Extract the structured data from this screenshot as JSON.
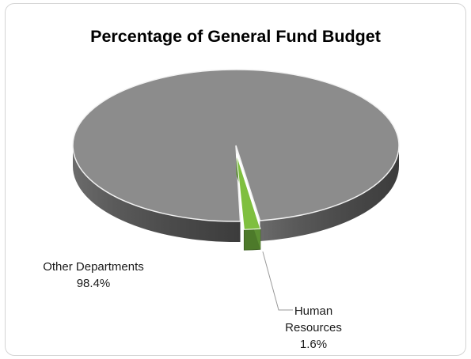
{
  "chart_data": {
    "type": "pie",
    "title": "Percentage of General Fund Budget",
    "categories": [
      "Other Departments",
      "Human Resources"
    ],
    "values": [
      98.4,
      1.6
    ],
    "value_labels": [
      "98.4%",
      "1.6%"
    ],
    "colors": {
      "Other Departments": "#8c8c8c",
      "Human Resources": "#7fbf3f"
    },
    "style": "3d",
    "legend": "none"
  }
}
